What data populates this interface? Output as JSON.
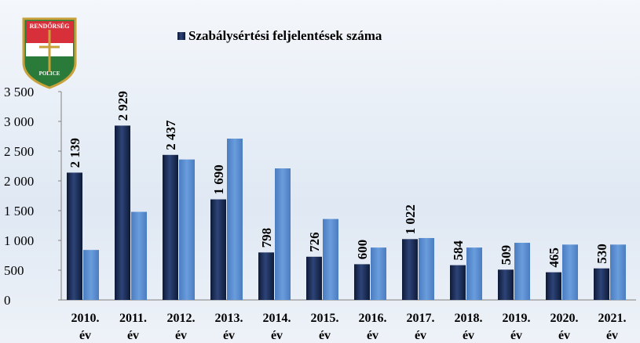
{
  "logo": {
    "top": "RENDŐRSÉG",
    "bottom": "POLICE"
  },
  "chart_data": {
    "type": "bar",
    "categories": [
      "2010. év",
      "2011. év",
      "2012. év",
      "2013. év",
      "2014. év",
      "2015. év",
      "2016. év",
      "2017. év",
      "2018. év",
      "2019. év",
      "2020. év",
      "2021. év"
    ],
    "series": [
      {
        "name": "Szabálysértési feljelentések száma",
        "color": "#1b2b52",
        "values": [
          2139,
          2929,
          2437,
          1690,
          798,
          726,
          600,
          1022,
          584,
          509,
          465,
          530
        ],
        "value_labels": [
          "2 139",
          "2 929",
          "2 437",
          "1 690",
          "798",
          "726",
          "600",
          "1 022",
          "584",
          "509",
          "465",
          "530"
        ]
      },
      {
        "color": "#5a8ed0",
        "values": [
          840,
          1480,
          2360,
          2710,
          2210,
          1360,
          880,
          1040,
          880,
          960,
          930,
          930
        ]
      }
    ],
    "ylim": [
      0,
      3500
    ],
    "yticks": [
      0,
      500,
      {
        "value": 1000,
        "label": "1 000"
      },
      {
        "value": 1500,
        "label": "1 500"
      },
      {
        "value": 2000,
        "label": "2 000"
      },
      {
        "value": 2500,
        "label": "2 500"
      },
      {
        "value": 3000,
        "label": "3 000"
      },
      {
        "value": 3500,
        "label": "3 500"
      }
    ]
  }
}
